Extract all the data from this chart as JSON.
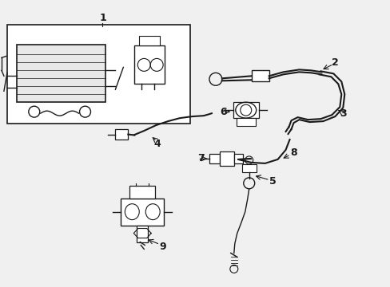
{
  "bg_color": "#f0f0f0",
  "line_color": "#1a1a1a",
  "fig_w": 4.89,
  "fig_h": 3.6,
  "dpi": 100
}
